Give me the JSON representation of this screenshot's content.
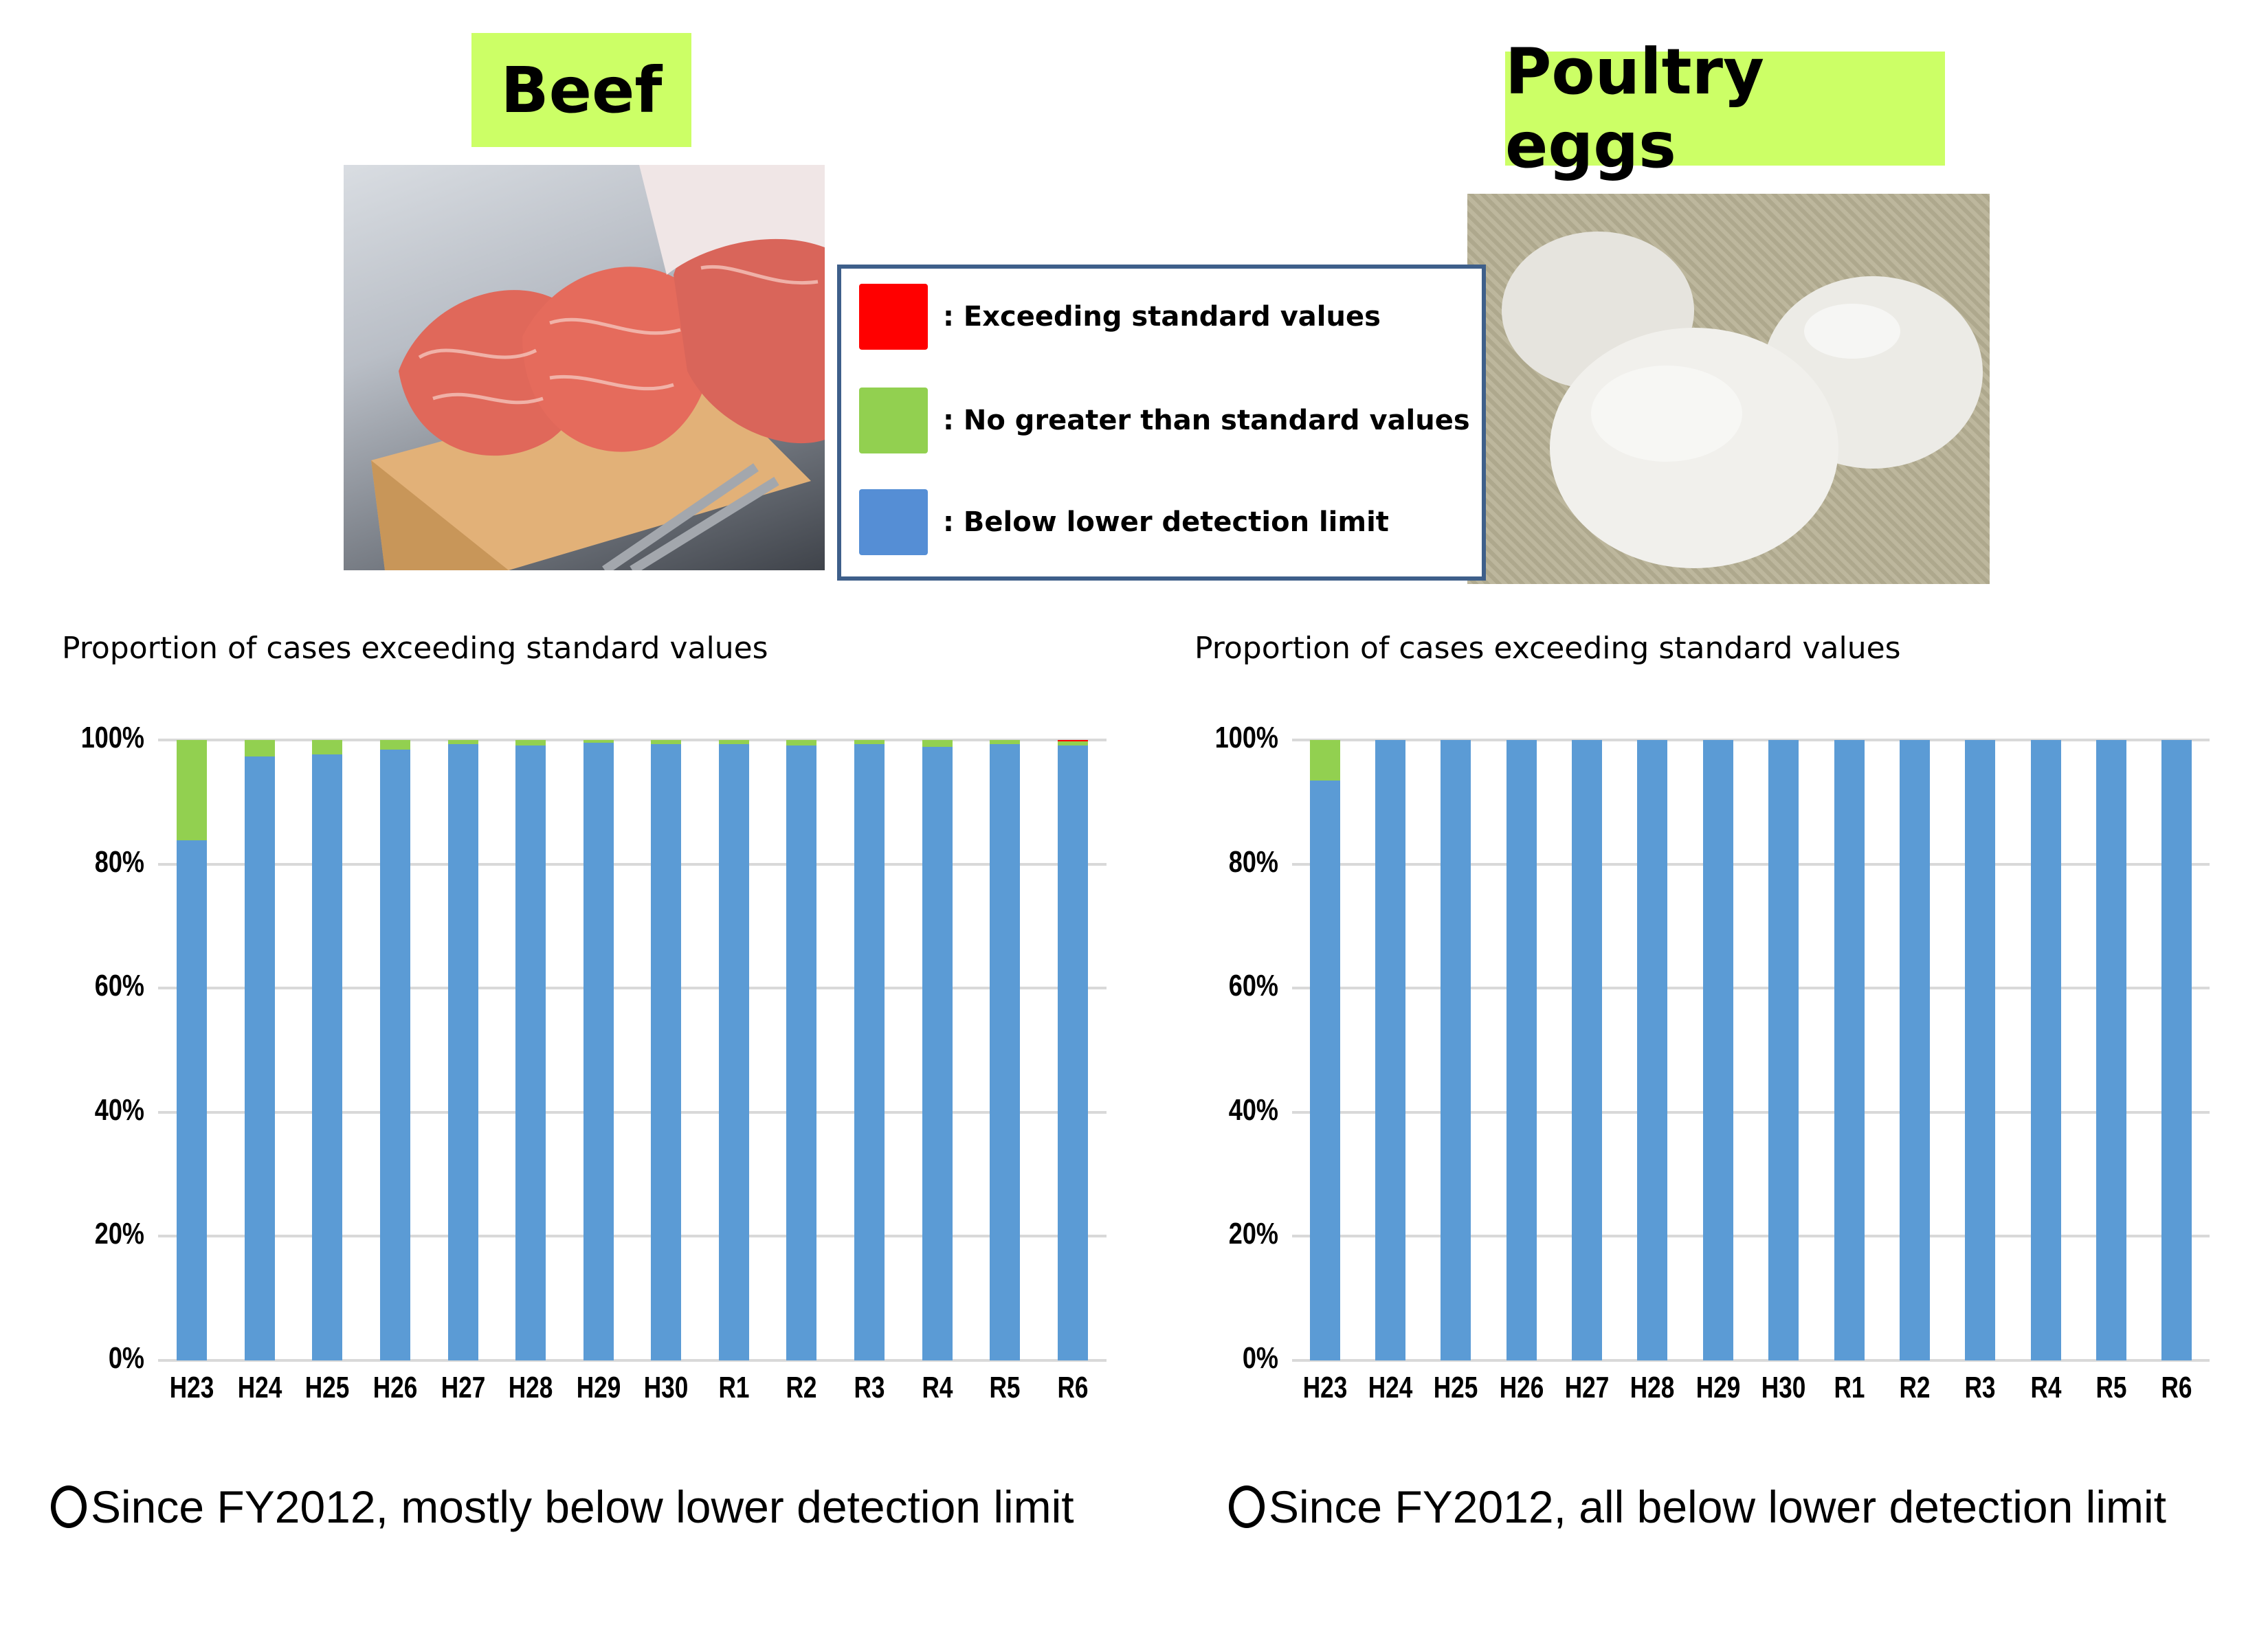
{
  "titles": {
    "beef": "Beef",
    "eggs": "Poultry eggs"
  },
  "photos": {
    "beef": "beef-steak-photo",
    "eggs": "eggs-photo"
  },
  "legend": {
    "items": [
      {
        "label": ": Exceeding standard values",
        "color": "#ff0000"
      },
      {
        "label": ": No greater than standard values",
        "color": "#92d050"
      },
      {
        "label": ": Below lower detection limit",
        "color": "#558ed5"
      }
    ],
    "border_color": "#3e5f8a"
  },
  "chart_titles": {
    "beef": "Proportion of cases exceeding standard values",
    "eggs": "Proportion of cases exceeding standard values"
  },
  "notes": {
    "beef": "Since FY2012, mostly below lower detection limit",
    "eggs": "Since FY2012, all below lower detection limit"
  },
  "axis": {
    "yticks": [
      "100%",
      "80%",
      "60%",
      "40%",
      "20%",
      "0%"
    ]
  },
  "chart_data": [
    {
      "type": "bar",
      "stacked": true,
      "title": "Proportion of cases exceeding standard values",
      "panel": "Beef",
      "categories": [
        "H23",
        "H24",
        "H25",
        "H26",
        "H27",
        "H28",
        "H29",
        "H30",
        "R1",
        "R2",
        "R3",
        "R4",
        "R5",
        "R6"
      ],
      "series": [
        {
          "name": "Below lower detection limit",
          "color": "#5b9bd5",
          "values": [
            83.8,
            97.3,
            97.7,
            98.5,
            99.3,
            99.1,
            99.6,
            99.3,
            99.3,
            99.1,
            99.3,
            98.9,
            99.3,
            99.1
          ]
        },
        {
          "name": "No greater than standard values",
          "color": "#92d050",
          "values": [
            16.2,
            2.7,
            2.3,
            1.5,
            0.7,
            0.9,
            0.4,
            0.7,
            0.7,
            0.9,
            0.7,
            1.1,
            0.7,
            0.7
          ]
        },
        {
          "name": "Exceeding standard values",
          "color": "#ff0000",
          "values": [
            0,
            0,
            0,
            0,
            0,
            0,
            0,
            0,
            0,
            0,
            0,
            0,
            0,
            0.2
          ]
        }
      ],
      "xlabel": "",
      "ylabel": "",
      "ylim": [
        0,
        100
      ],
      "yticks": [
        "0%",
        "20%",
        "40%",
        "60%",
        "80%",
        "100%"
      ],
      "grid": true
    },
    {
      "type": "bar",
      "stacked": true,
      "title": "Proportion of cases exceeding standard values",
      "panel": "Poultry eggs",
      "categories": [
        "H23",
        "H24",
        "H25",
        "H26",
        "H27",
        "H28",
        "H29",
        "H30",
        "R1",
        "R2",
        "R3",
        "R4",
        "R5",
        "R6"
      ],
      "series": [
        {
          "name": "Below lower detection limit",
          "color": "#5b9bd5",
          "values": [
            93.5,
            100,
            100,
            100,
            100,
            100,
            100,
            100,
            100,
            100,
            100,
            100,
            100,
            100
          ]
        },
        {
          "name": "No greater than standard values",
          "color": "#92d050",
          "values": [
            6.5,
            0,
            0,
            0,
            0,
            0,
            0,
            0,
            0,
            0,
            0,
            0,
            0,
            0
          ]
        },
        {
          "name": "Exceeding standard values",
          "color": "#ff0000",
          "values": [
            0,
            0,
            0,
            0,
            0,
            0,
            0,
            0,
            0,
            0,
            0,
            0,
            0,
            0
          ]
        }
      ],
      "xlabel": "",
      "ylabel": "",
      "ylim": [
        0,
        100
      ],
      "yticks": [
        "0%",
        "20%",
        "40%",
        "60%",
        "80%",
        "100%"
      ],
      "grid": true
    }
  ]
}
